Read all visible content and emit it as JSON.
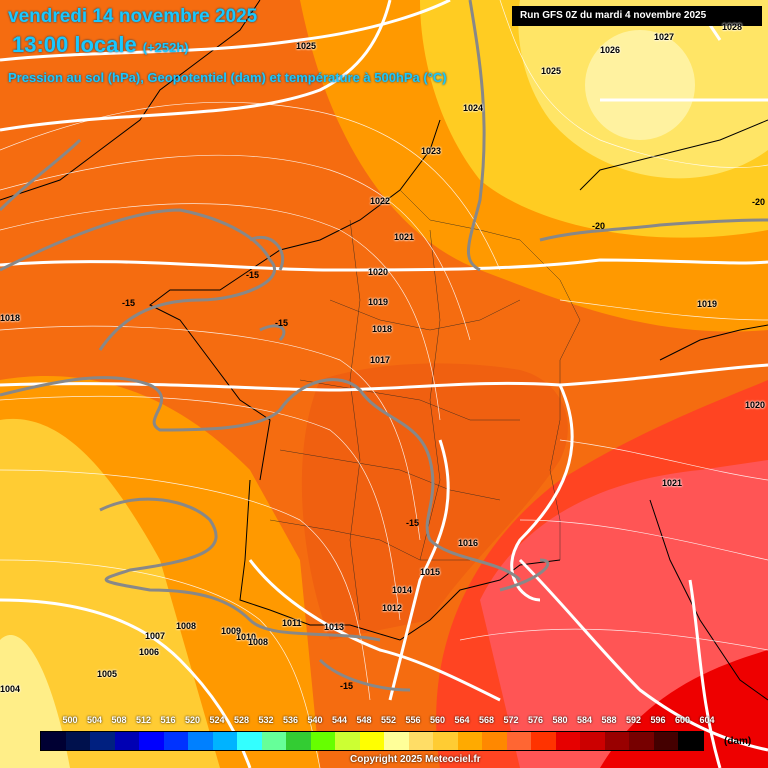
{
  "header": {
    "date": "vendredi 14 novembre 2025",
    "time": "13:00 locale",
    "lead": "(+252h)",
    "subtitle": "Pression au sol (hPa), Geopotentiel (dam) et température à 500hPa (°C)",
    "run": "Run GFS 0Z du mardi 4 novembre 2025"
  },
  "isobars": [
    "1028",
    "1027",
    "1026",
    "1025",
    "1025",
    "1024",
    "1023",
    "1022",
    "1021",
    "1020",
    "1019",
    "1018",
    "1017",
    "1016",
    "1015",
    "1014",
    "1013",
    "1012",
    "1011",
    "1010",
    "1009",
    "1008",
    "1008",
    "1007",
    "1006",
    "1005",
    "1004",
    "1018",
    "1019",
    "1020",
    "1021"
  ],
  "temperatures": [
    "-15",
    "-15",
    "-15",
    "-15",
    "-15",
    "-20",
    "-20"
  ],
  "legend": {
    "unit": "(dam)",
    "values": [
      "500",
      "504",
      "508",
      "512",
      "516",
      "520",
      "524",
      "528",
      "532",
      "536",
      "540",
      "544",
      "548",
      "552",
      "556",
      "560",
      "564",
      "568",
      "572",
      "576",
      "580",
      "584",
      "588",
      "592",
      "596",
      "600",
      "604"
    ],
    "colors": [
      "#000033",
      "#00114d",
      "#002080",
      "#0000b3",
      "#0000ff",
      "#0033ff",
      "#0080ff",
      "#00b3ff",
      "#33ffff",
      "#66ff99",
      "#33cc33",
      "#66ff00",
      "#ccff33",
      "#ffff00",
      "#ffff99",
      "#ffdd66",
      "#ffcc33",
      "#ffaa00",
      "#ff8800",
      "#ff6633",
      "#ff3300",
      "#e60000",
      "#cc0000",
      "#990000",
      "#770000",
      "#440000",
      "#000000"
    ]
  },
  "copyright": "Copyright 2025 Meteociel.fr"
}
